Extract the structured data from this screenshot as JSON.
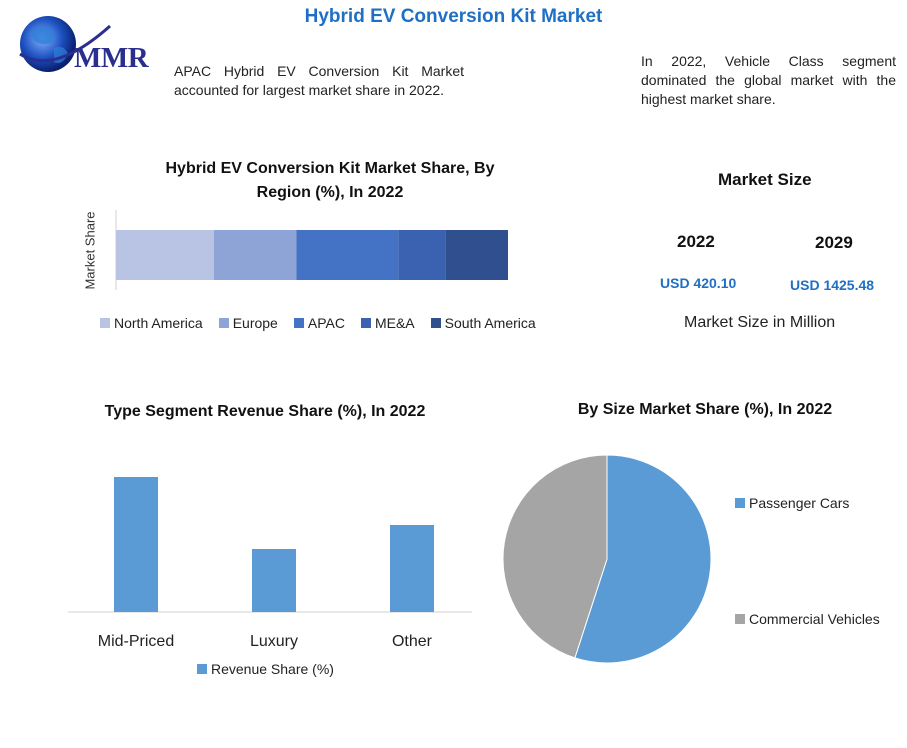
{
  "header": {
    "title": "Hybrid EV Conversion Kit Market",
    "logo_text": "MMR",
    "note_left": "APAC Hybrid EV Conversion Kit Market accounted for largest market share in 2022.",
    "note_right": "In 2022, Vehicle Class segment dominated the global market with the highest market share."
  },
  "market_size": {
    "heading": "Market Size",
    "years": [
      "2022",
      "2029"
    ],
    "values": [
      "USD 420.10",
      "USD 1425.48"
    ],
    "caption": "Market Size in Million"
  },
  "colors": {
    "title_blue": "#1f6fc5",
    "bar_blue": "#5b9bd5",
    "pie_gray": "#a5a5a5"
  },
  "chart_data": [
    {
      "type": "bar",
      "orientation": "horizontal-stacked",
      "title": "Hybrid EV Conversion Kit Market Share, By Region (%), In 2022",
      "ylabel": "Market Share",
      "categories": [
        ""
      ],
      "series": [
        {
          "name": "North America",
          "values": [
            25
          ],
          "color": "#b9c3e3"
        },
        {
          "name": "Europe",
          "values": [
            21
          ],
          "color": "#8ea3d6"
        },
        {
          "name": "APAC",
          "values": [
            26
          ],
          "color": "#4472c4"
        },
        {
          "name": "ME&A",
          "values": [
            12
          ],
          "color": "#3a62b0"
        },
        {
          "name": "South America",
          "values": [
            16
          ],
          "color": "#2f4f8f"
        }
      ],
      "legend": "bottom"
    },
    {
      "type": "bar",
      "title": "Type Segment Revenue Share (%), In 2022",
      "categories": [
        "Mid-Priced",
        "Luxury",
        "Other"
      ],
      "series": [
        {
          "name": "Revenue Share (%)",
          "values": [
            45,
            21,
            29
          ],
          "color": "#5b9bd5"
        }
      ],
      "ylim": [
        0,
        50
      ],
      "legend": "bottom"
    },
    {
      "type": "pie",
      "title": "By Size Market Share (%), In 2022",
      "labels": [
        "Passenger Cars",
        "Commercial Vehicles"
      ],
      "values": [
        55,
        45
      ],
      "colors": [
        "#5b9bd5",
        "#a5a5a5"
      ],
      "legend": "right"
    }
  ]
}
